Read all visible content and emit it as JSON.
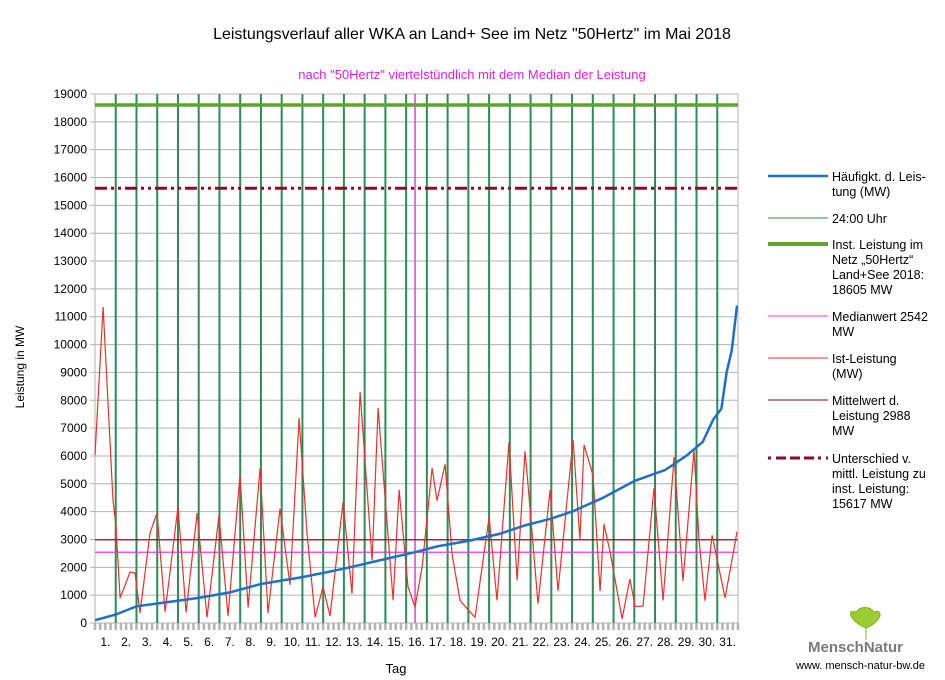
{
  "chart_data": {
    "type": "line",
    "title": "Leistungsverlauf aller WKA an Land+ See im Netz \"50Hertz\" im Mai 2018",
    "subtitle": "nach \"50Hertz\" viertelstündlich mit dem Median der Leistung",
    "xlabel": "Tag",
    "ylabel": "Leistung in MW",
    "ylim": [
      0,
      19000
    ],
    "xlim": [
      0,
      31
    ],
    "yticks": [
      0,
      1000,
      2000,
      3000,
      4000,
      5000,
      6000,
      7000,
      8000,
      9000,
      10000,
      11000,
      12000,
      13000,
      14000,
      15000,
      16000,
      17000,
      18000,
      19000
    ],
    "xtick_labels": [
      "1.",
      "2.",
      "3.",
      "4.",
      "5.",
      "6.",
      "7.",
      "8.",
      "9.",
      "10.",
      "11.",
      "12.",
      "13.",
      "14.",
      "15.",
      "16.",
      "17.",
      "18.",
      "19.",
      "20.",
      "21.",
      "22.",
      "23.",
      "24.",
      "25.",
      "26.",
      "27.",
      "28.",
      "29.",
      "30.",
      "31."
    ],
    "grid": true,
    "legend_position": "right",
    "series": [
      {
        "name": "Häufigkt. d. Leistung (MW)",
        "legend": [
          "Häufigkt. d. Leis-",
          "tung (MW)"
        ],
        "color": "#1f6fc5",
        "x": [
          0,
          1,
          2,
          3.5,
          5,
          6.5,
          8,
          10,
          12,
          14,
          15.43,
          16.5,
          18,
          19.5,
          20.7,
          22,
          23,
          24.5,
          26,
          27.5,
          28.5,
          29.3,
          29.8,
          30.2,
          30.45,
          30.7,
          30.95
        ],
        "y": [
          100,
          300,
          600,
          750,
          900,
          1100,
          1400,
          1650,
          1950,
          2300,
          2542,
          2750,
          2950,
          3200,
          3500,
          3750,
          4000,
          4500,
          5100,
          5500,
          6000,
          6500,
          7300,
          7700,
          9000,
          9800,
          11400
        ]
      },
      {
        "name": "24:00 Uhr",
        "legend": [
          "24:00 Uhr"
        ],
        "color": "#2e8b57"
      },
      {
        "name": "Inst. Leistung im Netz „50Hertz“ Land+See 2018: 18605 MW",
        "legend": [
          "Inst. Leistung im",
          "Netz „50Hertz“",
          "Land+See 2018:",
          "18605 MW"
        ],
        "color": "#5fa42a",
        "value": 18605
      },
      {
        "name": "Medianwert 2542 MW",
        "legend": [
          "Medianwert 2542",
          "MW"
        ],
        "color": "#e83be8",
        "value": 2542,
        "median_day": 15.43
      },
      {
        "name": "Ist-Leistung (MW)",
        "legend": [
          "Ist-Leistung",
          "(MW)"
        ],
        "color": "#e8312a",
        "x": [
          0,
          0.39,
          0.87,
          1.01,
          1.21,
          1.69,
          1.93,
          2.17,
          2.65,
          2.99,
          3.38,
          4.0,
          4.39,
          4.92,
          5.4,
          5.98,
          6.41,
          6.99,
          7.38,
          7.96,
          8.34,
          8.92,
          9.4,
          9.84,
          10.22,
          10.61,
          10.99,
          11.33,
          11.96,
          12.39,
          12.78,
          13.36,
          13.65,
          14.37,
          14.66,
          15.09,
          15.43,
          15.77,
          16.25,
          16.49,
          16.88,
          17.21,
          17.6,
          18.32,
          19.0,
          19.38,
          19.96,
          20.35,
          20.73,
          20.88,
          21.36,
          21.94,
          22.32,
          23.05,
          23.38,
          23.58,
          24.01,
          24.35,
          24.54,
          24.83,
          25.41,
          25.79,
          26.04,
          26.42,
          26.95,
          27.39,
          27.92,
          28.35,
          28.88,
          29.12,
          29.41,
          29.75,
          30.38,
          30.95
        ],
        "y": [
          6030,
          11350,
          4400,
          3500,
          900,
          1830,
          1800,
          360,
          3230,
          3950,
          400,
          4170,
          380,
          3950,
          200,
          3870,
          250,
          5320,
          560,
          5560,
          360,
          4100,
          1370,
          7360,
          3230,
          200,
          1300,
          250,
          4350,
          1050,
          8300,
          2250,
          7720,
          820,
          4780,
          1300,
          580,
          2000,
          5570,
          4400,
          5700,
          2490,
          800,
          200,
          3800,
          810,
          6500,
          1530,
          6170,
          4930,
          700,
          4780,
          1150,
          6570,
          3000,
          6400,
          5300,
          1150,
          3550,
          2570,
          150,
          1580,
          600,
          600,
          4850,
          810,
          5960,
          1510,
          6200,
          2990,
          800,
          3150,
          900,
          3270
        ]
      },
      {
        "name": "Mittelwert d. Leistung 2988 MW",
        "legend": [
          "Mittelwert d.",
          "Leistung 2988",
          "MW"
        ],
        "color": "#7a0a1a",
        "value": 2988
      },
      {
        "name": "Unterschied v. mittl. Leistung zu inst. Leistung: 15617 MW",
        "legend": [
          "Unterschied v.",
          "mittl. Leistung zu",
          "inst. Leistung:",
          "15617 MW"
        ],
        "color": "#8b0a2a",
        "value": 15617
      }
    ]
  },
  "logo": {
    "text": "MenschNatur",
    "url_text": "www. mensch-natur-bw.de"
  }
}
